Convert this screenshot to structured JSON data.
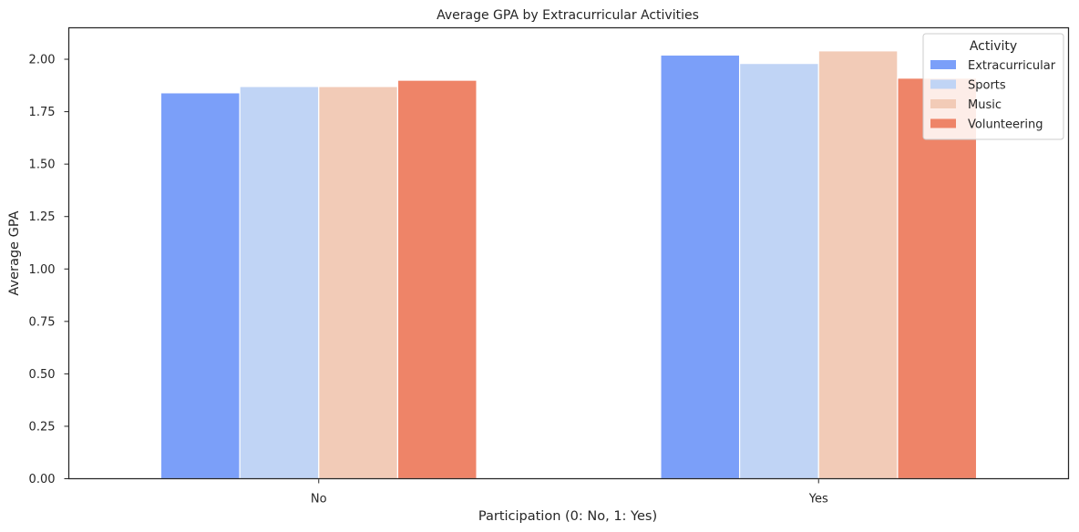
{
  "chart_data": {
    "type": "bar",
    "title": "Average GPA by Extracurricular Activities",
    "xlabel": "Participation (0: No, 1: Yes)",
    "ylabel": "Average GPA",
    "categories": [
      "No",
      "Yes"
    ],
    "ylim": [
      0,
      2.15
    ],
    "yticks": [
      "0.00",
      "0.25",
      "0.50",
      "0.75",
      "1.00",
      "1.25",
      "1.50",
      "1.75",
      "2.00"
    ],
    "grid": false,
    "legend_title": "Activity",
    "legend_position": "top-right",
    "series": [
      {
        "name": "Extracurricular",
        "color": "#7b9ff9",
        "values": [
          1.84,
          2.02
        ]
      },
      {
        "name": "Sports",
        "color": "#c0d4f5",
        "values": [
          1.87,
          1.98
        ]
      },
      {
        "name": "Music",
        "color": "#f2cbb7",
        "values": [
          1.87,
          2.04
        ]
      },
      {
        "name": "Volunteering",
        "color": "#ee8468",
        "values": [
          1.9,
          1.91
        ]
      }
    ]
  }
}
